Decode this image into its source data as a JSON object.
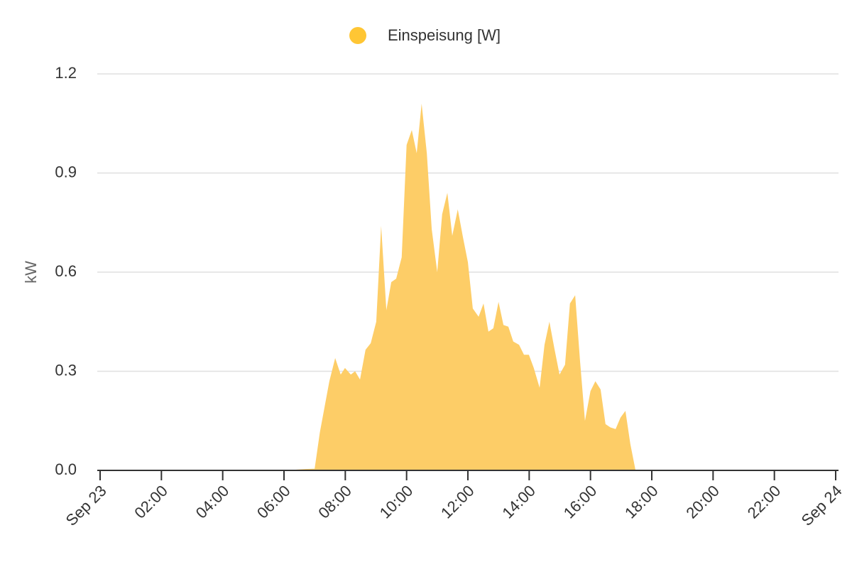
{
  "chart_data": {
    "type": "area",
    "y_label": "kW",
    "x": [
      0,
      6.0,
      6.7,
      7.0,
      7.17,
      7.48,
      7.67,
      7.85,
      7.99,
      8.18,
      8.32,
      8.48,
      8.66,
      8.83,
      9.01,
      9.17,
      9.34,
      9.5,
      9.66,
      9.84,
      10.0,
      10.17,
      10.33,
      10.49,
      10.66,
      10.82,
      11.0,
      11.16,
      11.33,
      11.49,
      11.67,
      11.84,
      12.0,
      12.16,
      12.35,
      12.51,
      12.67,
      12.83,
      13.0,
      13.16,
      13.32,
      13.48,
      13.67,
      13.83,
      13.99,
      14.15,
      14.34,
      14.5,
      14.66,
      14.82,
      14.99,
      15.17,
      15.33,
      15.5,
      15.66,
      15.82,
      16.0,
      16.16,
      16.33,
      16.49,
      16.65,
      16.82,
      16.98,
      17.14,
      17.3,
      17.47,
      24
    ],
    "series": [
      {
        "name": "Einspeisung [W]",
        "color": "#fdcd67",
        "legend_color": "#ffc634",
        "values": [
          0,
          0,
          0.004,
          0.005,
          0.115,
          0.27,
          0.34,
          0.29,
          0.31,
          0.29,
          0.3,
          0.275,
          0.365,
          0.385,
          0.45,
          0.74,
          0.485,
          0.57,
          0.58,
          0.645,
          0.985,
          1.03,
          0.96,
          1.11,
          0.96,
          0.73,
          0.6,
          0.775,
          0.84,
          0.71,
          0.79,
          0.705,
          0.63,
          0.49,
          0.465,
          0.505,
          0.42,
          0.43,
          0.51,
          0.44,
          0.435,
          0.39,
          0.38,
          0.35,
          0.35,
          0.31,
          0.25,
          0.38,
          0.45,
          0.37,
          0.29,
          0.32,
          0.505,
          0.53,
          0.33,
          0.15,
          0.24,
          0.27,
          0.245,
          0.14,
          0.13,
          0.125,
          0.16,
          0.18,
          0.08,
          0,
          0
        ]
      }
    ],
    "xlim": [
      0,
      24
    ],
    "xticks": [
      {
        "value": 0,
        "label": "Sep 23"
      },
      {
        "value": 2,
        "label": "02:00"
      },
      {
        "value": 4,
        "label": "04:00"
      },
      {
        "value": 6,
        "label": "06:00"
      },
      {
        "value": 8,
        "label": "08:00"
      },
      {
        "value": 10,
        "label": "10:00"
      },
      {
        "value": 12,
        "label": "12:00"
      },
      {
        "value": 14,
        "label": "14:00"
      },
      {
        "value": 16,
        "label": "16:00"
      },
      {
        "value": 18,
        "label": "18:00"
      },
      {
        "value": 20,
        "label": "20:00"
      },
      {
        "value": 22,
        "label": "22:00"
      },
      {
        "value": 24,
        "label": "Sep 24"
      }
    ],
    "ylim": [
      0,
      1.2
    ],
    "yticks": [
      {
        "value": 0,
        "label": "0.0"
      },
      0.3,
      0.6,
      0.9,
      1.2
    ],
    "grid": true
  }
}
